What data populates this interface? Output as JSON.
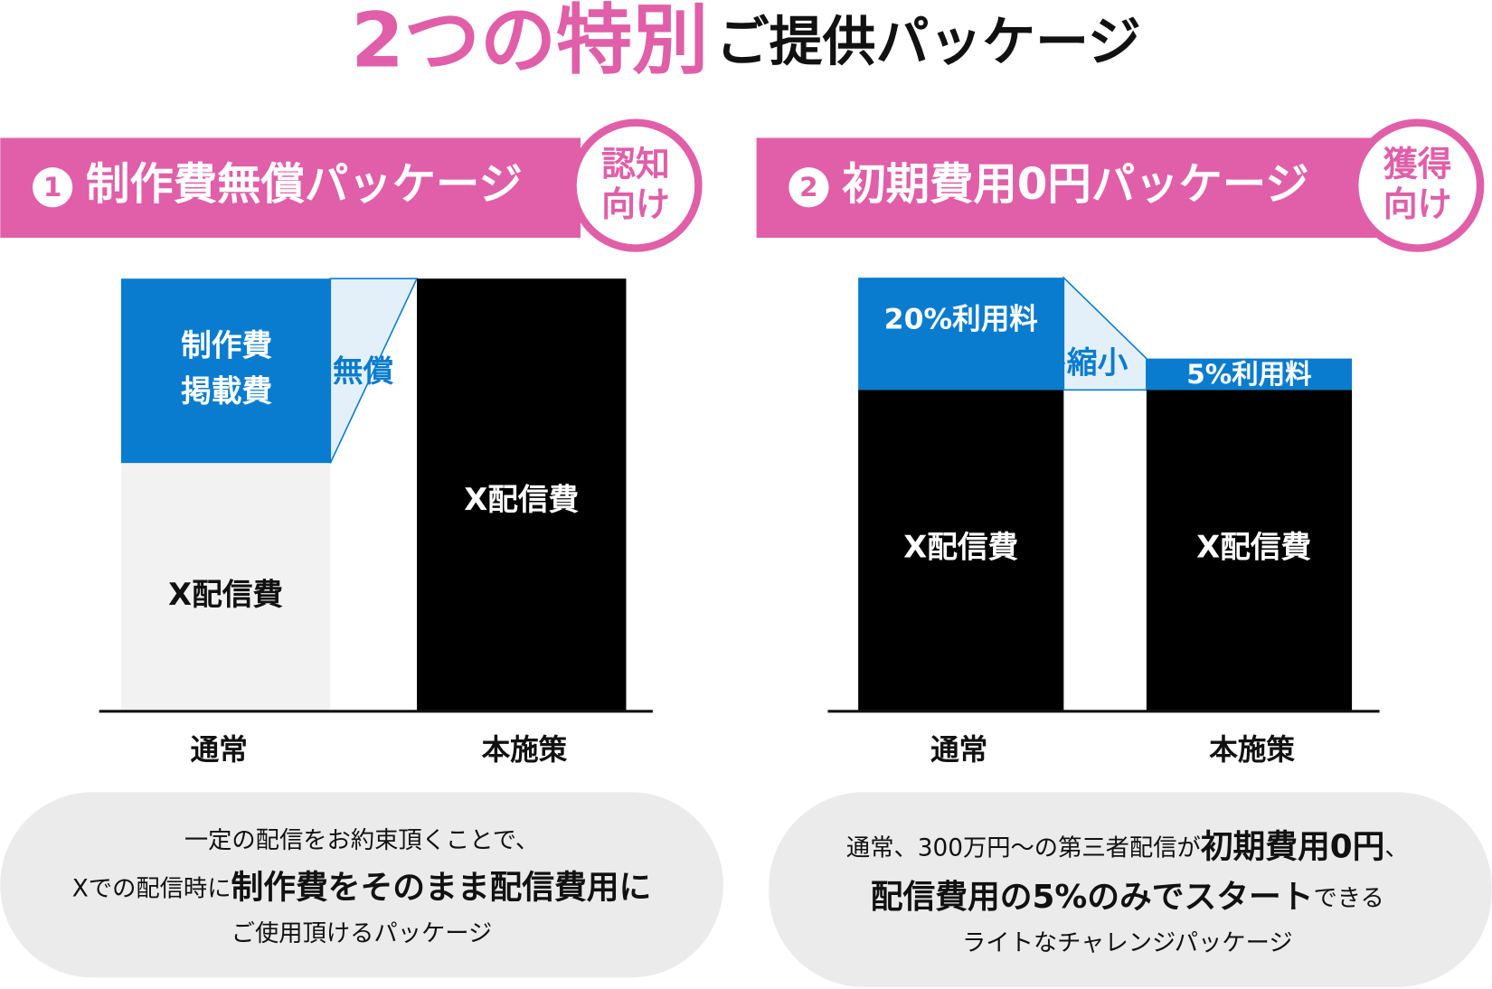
{
  "header": {
    "highlight": "2つの特別",
    "rest": "ご提供パッケージ"
  },
  "packages": [
    {
      "number": "1",
      "title": "制作費無償パッケージ",
      "badge": [
        "認知",
        "向け"
      ],
      "diagram": {
        "labels": [
          "制作費",
          "掲載費",
          "⇨無償",
          "X配信費",
          "X配信費"
        ],
        "categories": [
          "通常",
          "本施策"
        ]
      },
      "description": [
        [
          "一定の配信をお約束頂くことで、"
        ],
        [
          "Xでの配信時に",
          "制作費をそのまま配信費用に"
        ],
        [
          "ご使用頂けるパッケージ"
        ]
      ]
    },
    {
      "number": "2",
      "title": "初期費用0円パッケージ",
      "badge": [
        "獲得",
        "向け"
      ],
      "diagram": {
        "labels": [
          "20%利用料",
          "⇨縮小",
          "5%利用料",
          "X配信費",
          "X配信費"
        ],
        "categories": [
          "通常",
          "本施策"
        ]
      },
      "description": [
        [
          "通常、300万円〜の第三者配信が",
          "初期費用0円",
          "、"
        ],
        [
          "配信費用の5%のみでスタート",
          "できる"
        ],
        [
          "ライトなチャレンジパッケージ"
        ]
      ]
    }
  ]
}
